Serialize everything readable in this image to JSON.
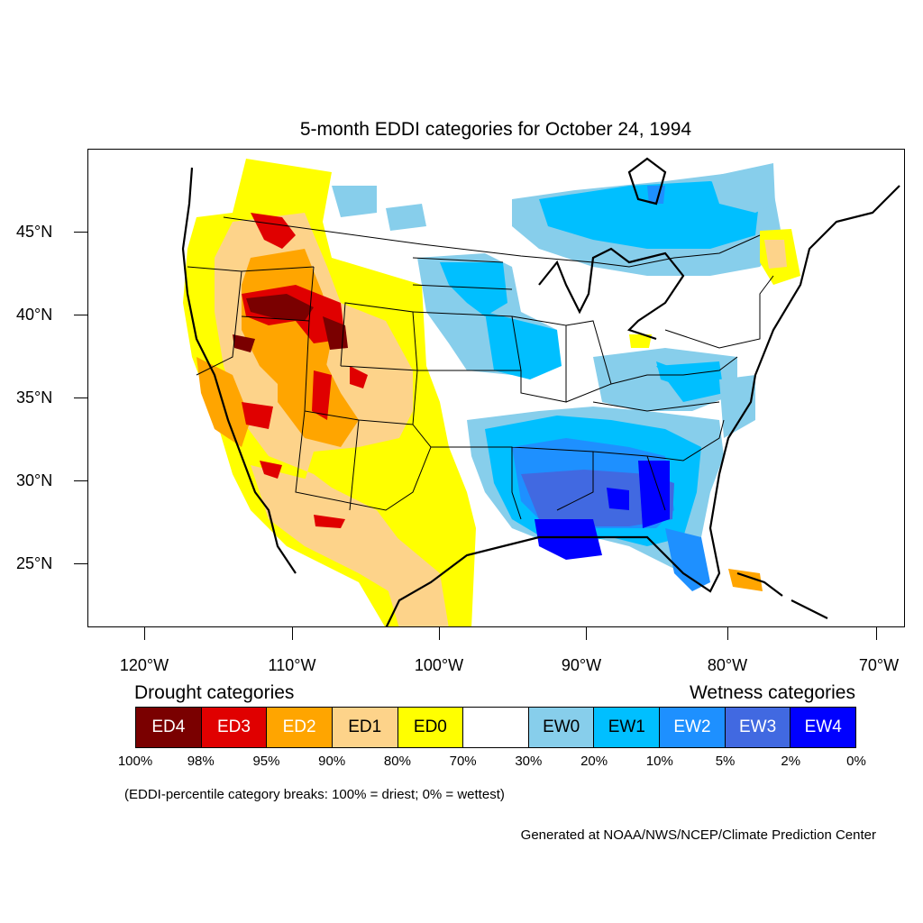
{
  "title": "5-month EDDI categories for October 24, 1994",
  "map": {
    "projection": "Lambert conformal, contiguous United States",
    "shading": "EDDI category by grid cell",
    "regions": [
      {
        "name": "Pacific Northwest / Northern Rockies",
        "category": "ED1-ED4 (severe drought core over Idaho and Wyoming)"
      },
      {
        "name": "Great Basin / Southwest",
        "category": "ED1-ED4"
      },
      {
        "name": "Texas / New Mexico",
        "category": "ED1-ED2"
      },
      {
        "name": "Northern Plains / Upper Midwest",
        "category": "EW0-EW2"
      },
      {
        "name": "Southeast / Gulf Coast",
        "category": "EW1-EW4 (wettest over Louisiana, Alabama, Georgia)"
      },
      {
        "name": "Ohio Valley / Mid-Atlantic",
        "category": "EW0-EW1"
      },
      {
        "name": "Southern Canada (Ontario / Quebec)",
        "category": "EW0-EW1"
      }
    ]
  },
  "axes": {
    "lat_labels": [
      "45°N",
      "40°N",
      "35°N",
      "30°N",
      "25°N"
    ],
    "lon_labels": [
      "120°W",
      "110°W",
      "100°W",
      "90°W",
      "80°W",
      "70°W"
    ]
  },
  "legend": {
    "drought_heading": "Drought categories",
    "wetness_heading": "Wetness categories",
    "categories": [
      {
        "label": "ED4",
        "color": "#7a0000",
        "text_color": "#ffffff"
      },
      {
        "label": "ED3",
        "color": "#e00000",
        "text_color": "#ffffff"
      },
      {
        "label": "ED2",
        "color": "#ffa500",
        "text_color": "#ffffff"
      },
      {
        "label": "ED1",
        "color": "#fdd38a",
        "text_color": "#000000"
      },
      {
        "label": "ED0",
        "color": "#ffff00",
        "text_color": "#000000"
      },
      {
        "label": "",
        "color": "#ffffff",
        "text_color": "#000000"
      },
      {
        "label": "EW0",
        "color": "#87ceeb",
        "text_color": "#000000"
      },
      {
        "label": "EW1",
        "color": "#00bfff",
        "text_color": "#000000"
      },
      {
        "label": "EW2",
        "color": "#1e90ff",
        "text_color": "#ffffff"
      },
      {
        "label": "EW3",
        "color": "#4169e1",
        "text_color": "#ffffff"
      },
      {
        "label": "EW4",
        "color": "#0000ff",
        "text_color": "#ffffff"
      }
    ],
    "breaks": [
      "100%",
      "98%",
      "95%",
      "90%",
      "80%",
      "70%",
      "30%",
      "20%",
      "10%",
      "5%",
      "2%",
      "0%"
    ]
  },
  "note": "(EDDI-percentile category breaks: 100% = driest; 0% = wettest)",
  "credit": "Generated at NOAA/NWS/NCEP/Climate Prediction Center"
}
